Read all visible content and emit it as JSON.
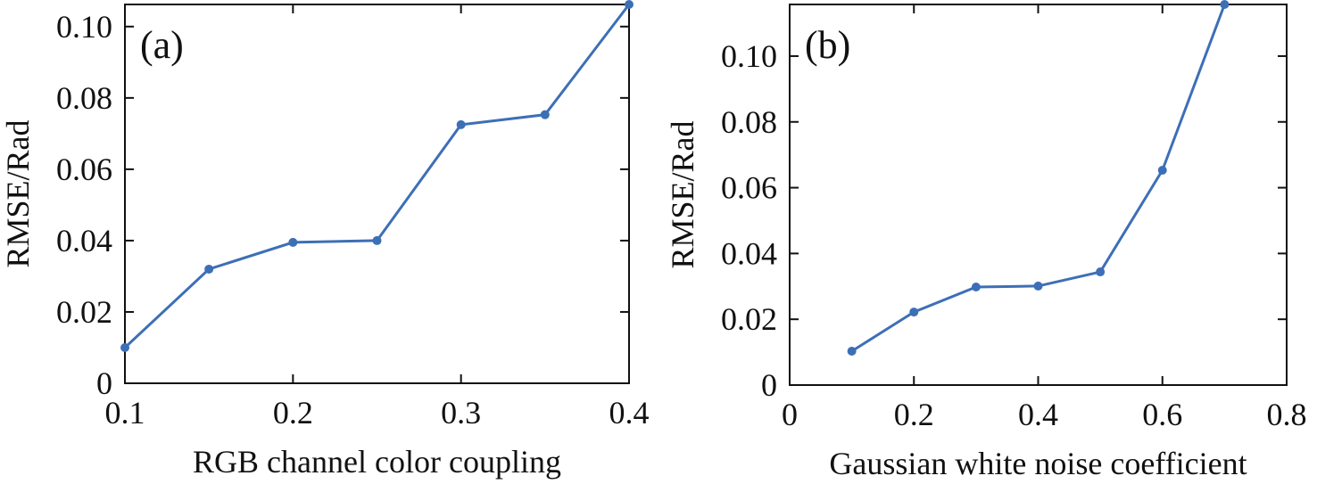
{
  "chart_data": [
    {
      "type": "line",
      "annotation": "(a)",
      "x_label": "RGB channel color coupling",
      "y_label": "RMSE/Rad",
      "x": [
        0.1,
        0.15,
        0.2,
        0.25,
        0.3,
        0.35,
        0.4
      ],
      "series": [
        {
          "color": "#3d6fb6",
          "values": [
            0.01,
            0.032,
            0.0395,
            0.04,
            0.0725,
            0.0753,
            0.1062
          ]
        }
      ],
      "xlim": [
        0.1,
        0.4
      ],
      "xticks": [
        0.1,
        0.2,
        0.3,
        0.4
      ],
      "ylim": [
        0,
        0.1062
      ],
      "yticks": [
        0,
        0.02,
        0.04,
        0.06,
        0.08,
        {
          "value": 0.1,
          "label": "0.10"
        }
      ]
    },
    {
      "type": "line",
      "annotation": "(b)",
      "x_label": "Gaussian white noise coefficient",
      "y_label": "RMSE/Rad",
      "x": [
        0.1,
        0.2,
        0.3,
        0.4,
        0.5,
        0.6,
        0.7
      ],
      "series": [
        {
          "color": "#3d6fb6",
          "values": [
            0.0103,
            0.0222,
            0.0298,
            0.0301,
            0.0344,
            0.0653,
            0.1157
          ]
        }
      ],
      "xlim": [
        0,
        0.8
      ],
      "xticks": [
        0,
        0.2,
        0.4,
        0.6,
        0.8
      ],
      "ylim": [
        0,
        0.1157
      ],
      "yticks": [
        0,
        0.02,
        0.04,
        0.06,
        0.08,
        {
          "value": 0.1,
          "label": "0.10"
        }
      ]
    }
  ]
}
